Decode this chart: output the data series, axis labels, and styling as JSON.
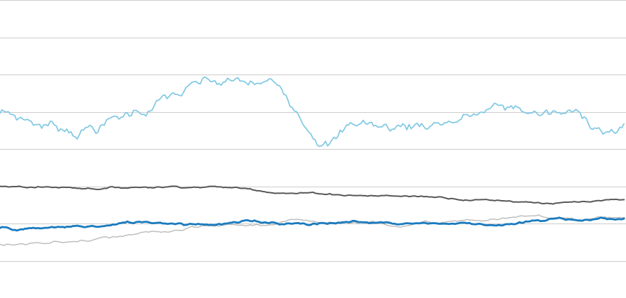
{
  "background_color": "#ffffff",
  "grid_color": "#cccccc",
  "line1_color": "#7ec8e3",
  "line2_color": "#555555",
  "line3_color": "#1a7bbf",
  "line4_color": "#bbbbbb",
  "line1_lw": 1.2,
  "line2_lw": 1.4,
  "line3_lw": 2.0,
  "line4_lw": 1.0,
  "ylim": [
    0,
    100
  ],
  "xlim": [
    0,
    300
  ],
  "n_points": 300,
  "n_gridlines": 9,
  "figsize": [
    8.8,
    4.2
  ],
  "dpi": 100
}
